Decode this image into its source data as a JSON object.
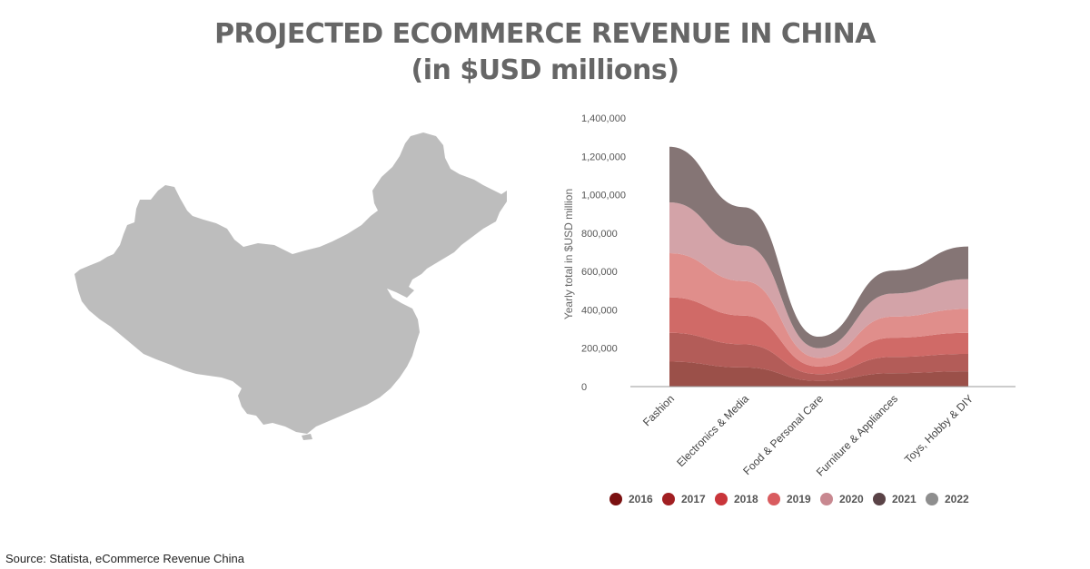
{
  "title": {
    "line1": "PROJECTED ECOMMERCE REVENUE IN CHINA",
    "line2": "(in $USD millions)"
  },
  "map": {
    "color": "#bdbdbd"
  },
  "source": "Source: Statista, eCommerce Revenue China",
  "chart_data": {
    "type": "area",
    "stacked": true,
    "smooth": true,
    "categories": [
      "Fashion",
      "Electronics & Media",
      "Food & Personal Care",
      "Furniture & Appliances",
      "Toys, Hobby & DIY"
    ],
    "ylabel": "Yearly total in $USD million",
    "ylim": [
      0,
      1400000
    ],
    "yticks": [
      0,
      200000,
      400000,
      600000,
      800000,
      1000000,
      1200000,
      1400000
    ],
    "ytick_labels": [
      "0",
      "200,000",
      "400,000",
      "600,000",
      "800,000",
      "1,000,000",
      "1,200,000",
      "1,400,000"
    ],
    "legend_position": "bottom",
    "series": [
      {
        "name": "2016",
        "values": [
          130000,
          100000,
          30000,
          70000,
          80000
        ],
        "fill": "#9b5049",
        "legend_color": "#7a1010"
      },
      {
        "name": "2017",
        "values": [
          150000,
          120000,
          35000,
          85000,
          90000
        ],
        "fill": "#b35c58",
        "legend_color": "#a11f22"
      },
      {
        "name": "2018",
        "values": [
          185000,
          150000,
          40000,
          100000,
          110000
        ],
        "fill": "#d06a67",
        "legend_color": "#c9353a"
      },
      {
        "name": "2019",
        "values": [
          230000,
          180000,
          45000,
          110000,
          125000
        ],
        "fill": "#e08e8b",
        "legend_color": "#d95c5f"
      },
      {
        "name": "2020",
        "values": [
          265000,
          185000,
          50000,
          120000,
          155000
        ],
        "fill": "#d3a3a8",
        "legend_color": "#c88890"
      },
      {
        "name": "2021",
        "values": [
          290000,
          200000,
          60000,
          120000,
          170000
        ],
        "fill": "#857575",
        "legend_color": "#5a4347"
      },
      {
        "name": "2022",
        "values": [
          0,
          0,
          0,
          0,
          0
        ],
        "fill": "#8e8e8e",
        "legend_color": "#8e8e8e"
      }
    ]
  }
}
